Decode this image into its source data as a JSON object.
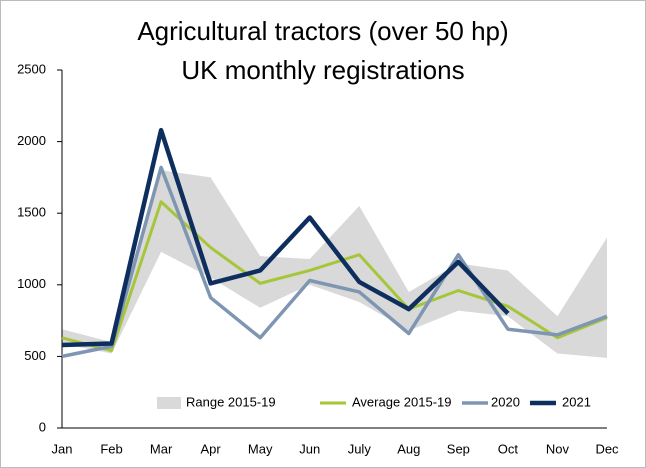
{
  "chart_data": {
    "type": "line",
    "title": [
      "Agricultural tractors (over 50 hp)",
      "UK monthly registrations"
    ],
    "categories": [
      "Jan",
      "Feb",
      "Mar",
      "Apr",
      "May",
      "Jun",
      "July",
      "Aug",
      "Sep",
      "Oct",
      "Nov",
      "Dec"
    ],
    "range": {
      "name": "Range 2015-19",
      "color": "#d9d9d9",
      "high": [
        690,
        600,
        1800,
        1750,
        1200,
        1180,
        1550,
        950,
        1150,
        1100,
        780,
        1330
      ],
      "low": [
        590,
        520,
        1230,
        1050,
        840,
        1000,
        880,
        680,
        820,
        780,
        520,
        490
      ]
    },
    "series": [
      {
        "name": "Average 2015-19",
        "color": "#a6c63a",
        "width": 3,
        "values": [
          630,
          540,
          1580,
          1260,
          1010,
          1100,
          1210,
          830,
          960,
          850,
          630,
          770
        ]
      },
      {
        "name": "2020",
        "color": "#7f96b2",
        "width": 3.5,
        "values": [
          500,
          570,
          1820,
          910,
          630,
          1030,
          950,
          660,
          1210,
          690,
          650,
          780
        ]
      },
      {
        "name": "2021",
        "color": "#0e2f5e",
        "width": 4.5,
        "values": [
          580,
          590,
          2080,
          1010,
          1100,
          1470,
          1020,
          830,
          1160,
          800,
          null,
          null
        ]
      }
    ],
    "ylim": [
      0,
      2500
    ],
    "yticks": [
      0,
      500,
      1000,
      1500,
      2000,
      2500
    ],
    "grid": false
  }
}
